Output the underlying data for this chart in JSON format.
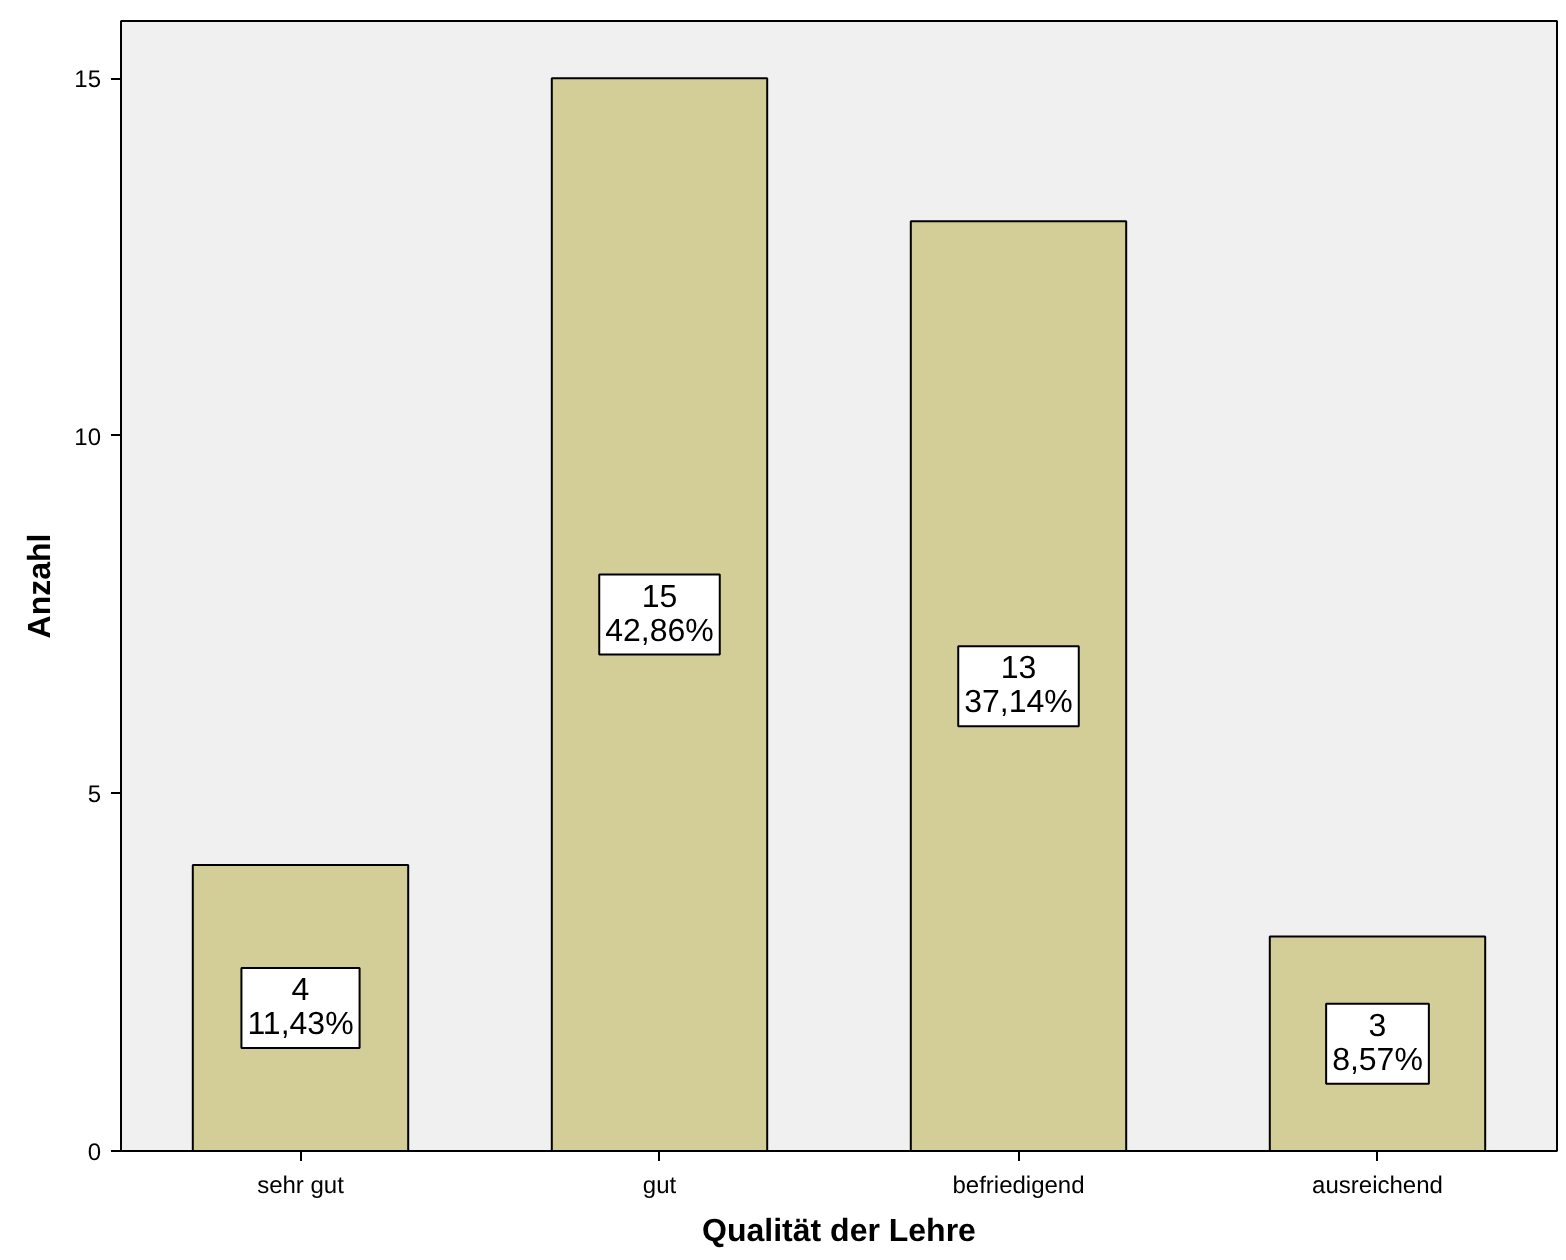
{
  "chart_data": {
    "type": "bar",
    "xlabel": "Qualität der Lehre",
    "ylabel": "Anzahl",
    "categories": [
      "sehr gut",
      "gut",
      "befriedigend",
      "ausreichend"
    ],
    "values": [
      4,
      15,
      13,
      3
    ],
    "value_labels": [
      "4\n11,43%",
      "15\n42,86%",
      "13\n37,14%",
      "3\n8,57%"
    ],
    "color": "#d3ce97",
    "ylim": [
      0,
      15.8
    ],
    "yticks": [
      0,
      5,
      10,
      15
    ],
    "grid": false
  }
}
